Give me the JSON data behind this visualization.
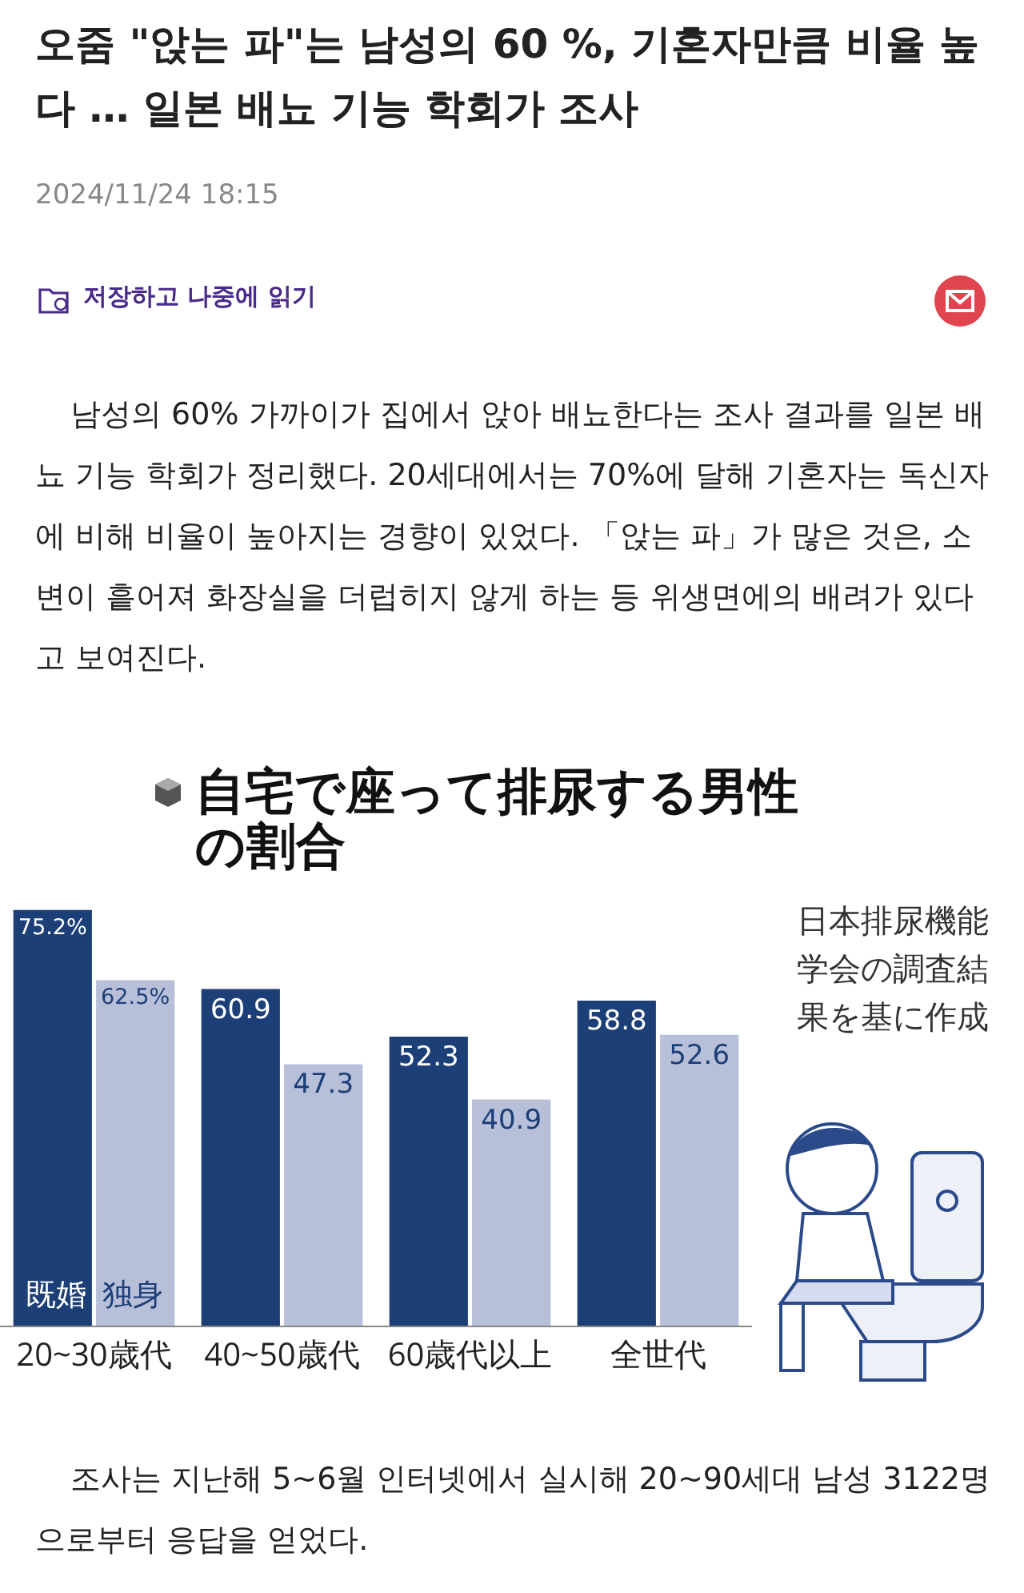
{
  "chart_data": {
    "type": "bar",
    "title": "自宅で座って排尿する男性の割合",
    "categories": [
      "20~30歳代",
      "40~50歳代",
      "60歳代以上",
      "全世代"
    ],
    "series": [
      {
        "name": "既婚",
        "color": "#1d3f78",
        "values": [
          75.2,
          60.9,
          52.3,
          58.8
        ],
        "value_labels": [
          "75.2%",
          "60.9",
          "52.3",
          "58.8"
        ]
      },
      {
        "name": "独身",
        "color": "#b8bfd8",
        "values": [
          62.5,
          47.3,
          40.9,
          52.6
        ],
        "value_labels": [
          "62.5%",
          "47.3",
          "40.9",
          "52.6"
        ]
      }
    ],
    "grid": false,
    "legend": false,
    "annotations": [
      "오줌 \"앉는 파\"는 남성의 60 %, 기혼자만큼 비율 높다 … 일본 배뇨 기능 학회가 조사",
      "2024/11/24 18:15",
      "저장하고 나중에 읽기",
      "남성의 60% 가까이가 집에서 앉아 배뇨한다는 조사 결과를 일본 배뇨 기능 학회가 정리했다. 20세대에서는 70%에 달해 기혼자는 독신자에 비해 비율이 높아지는 경향이 있었다. 「앉는 파」가 많은 것은, 소변이 흩어져 화장실을 더럽히지 않게 하는 등 위생면에의 배려가 있다고 보여진다.",
      "日本排尿機能学会の調査結果を基に作成",
      "조사는 지난해 5~6월 인터넷에서 실시해 20~90세대 남성 3122명으로부터 응답을 얻었다."
    ]
  }
}
